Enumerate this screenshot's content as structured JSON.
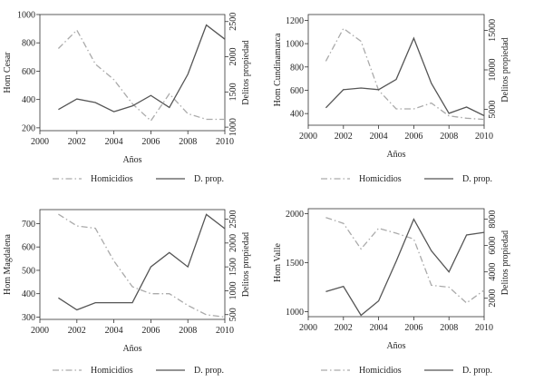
{
  "chart_data": [
    {
      "type": "line",
      "ylabel_left": "Hom Cesar",
      "ylabel_right": "Delitos propiedad",
      "xlabel": "Años",
      "x": [
        2001,
        2002,
        2003,
        2004,
        2005,
        2006,
        2007,
        2008,
        2009,
        2010
      ],
      "xlim": [
        2000,
        2010
      ],
      "xticks": [
        "2000",
        "2002",
        "2004",
        "2006",
        "2008",
        "2010"
      ],
      "ylim_left": [
        180,
        1000
      ],
      "yticks_left": [
        "200",
        "400",
        "600",
        "800",
        "1000"
      ],
      "ylim_right": [
        950,
        2600
      ],
      "yticks_right": [
        "1000",
        "1500",
        "2000",
        "2500"
      ],
      "series": [
        {
          "name": "Homicidios",
          "axis": "left",
          "values": [
            760,
            890,
            650,
            540,
            370,
            250,
            440,
            300,
            260,
            260
          ]
        },
        {
          "name": "D. prop.",
          "axis": "right",
          "values": [
            1250,
            1400,
            1350,
            1220,
            1300,
            1450,
            1280,
            1750,
            2450,
            2250
          ]
        }
      ],
      "legend": [
        "Homicidios",
        "D. prop."
      ],
      "legend_position": "bottom"
    },
    {
      "type": "line",
      "ylabel_left": "Hom Cundinamarca",
      "ylabel_right": "Delitos propiedad",
      "xlabel": "Años",
      "x": [
        2001,
        2002,
        2003,
        2004,
        2005,
        2006,
        2007,
        2008,
        2009,
        2010
      ],
      "xlim": [
        2000,
        2010
      ],
      "xticks": [
        "2000",
        "2002",
        "2004",
        "2006",
        "2008",
        "2010"
      ],
      "ylim_left": [
        300,
        1250
      ],
      "yticks_left": [
        "400",
        "600",
        "800",
        "1000",
        "1200"
      ],
      "ylim_right": [
        3000,
        17000
      ],
      "yticks_right": [
        "5000",
        "10000",
        "15000"
      ],
      "series": [
        {
          "name": "Homicidios",
          "axis": "left",
          "values": [
            850,
            1130,
            1020,
            600,
            440,
            440,
            490,
            380,
            360,
            350
          ]
        },
        {
          "name": "D. prop.",
          "axis": "right",
          "values": [
            5200,
            7500,
            7700,
            7500,
            8800,
            14000,
            8300,
            4500,
            5300,
            4200
          ]
        }
      ],
      "legend": [
        "Homicidios",
        "D. prop."
      ],
      "legend_position": "bottom"
    },
    {
      "type": "line",
      "ylabel_left": "Hom Magdalena",
      "ylabel_right": "Delitos propiedad",
      "xlabel": "Años",
      "x": [
        2001,
        2002,
        2003,
        2004,
        2005,
        2006,
        2007,
        2008,
        2009,
        2010
      ],
      "xlim": [
        2000,
        2010
      ],
      "xticks": [
        "2000",
        "2002",
        "2004",
        "2006",
        "2008",
        "2010"
      ],
      "ylim_left": [
        290,
        760
      ],
      "yticks_left": [
        "300",
        "400",
        "500",
        "600",
        "700"
      ],
      "ylim_right": [
        400,
        2700
      ],
      "yticks_right": [
        "500",
        "1000",
        "1500",
        "2000",
        "2500"
      ],
      "series": [
        {
          "name": "Homicidios",
          "axis": "left",
          "values": [
            740,
            690,
            680,
            540,
            430,
            400,
            400,
            350,
            310,
            300
          ]
        },
        {
          "name": "D. prop.",
          "axis": "right",
          "values": [
            850,
            600,
            750,
            750,
            750,
            1500,
            1800,
            1500,
            2600,
            2300
          ]
        }
      ],
      "legend": [
        "Homicidios",
        "D. prop."
      ],
      "legend_position": "bottom"
    },
    {
      "type": "line",
      "ylabel_left": "Hom Valle",
      "ylabel_right": "Delitos propiedad",
      "xlabel": "Años",
      "x": [
        2001,
        2002,
        2003,
        2004,
        2005,
        2006,
        2007,
        2008,
        2009,
        2010
      ],
      "xlim": [
        2000,
        2010
      ],
      "xticks": [
        "2000",
        "2002",
        "2004",
        "2006",
        "2008",
        "2010"
      ],
      "ylim_left": [
        950,
        2050
      ],
      "yticks_left": [
        "1000",
        "1500",
        "2000"
      ],
      "ylim_right": [
        600,
        8800
      ],
      "yticks_right": [
        "2000",
        "4000",
        "6000",
        "8000"
      ],
      "series": [
        {
          "name": "Homicidios",
          "axis": "left",
          "values": [
            1960,
            1900,
            1640,
            1850,
            1800,
            1740,
            1270,
            1250,
            1090,
            1220
          ]
        },
        {
          "name": "D. prop.",
          "axis": "right",
          "values": [
            2500,
            2900,
            700,
            1800,
            4800,
            8000,
            5600,
            4000,
            6800,
            7000
          ]
        }
      ],
      "legend": [
        "Homicidios",
        "D. prop."
      ],
      "legend_position": "bottom"
    }
  ],
  "colors": {
    "homicidios": "#aaaaaa",
    "delitos": "#555555",
    "axes": "#333333"
  }
}
